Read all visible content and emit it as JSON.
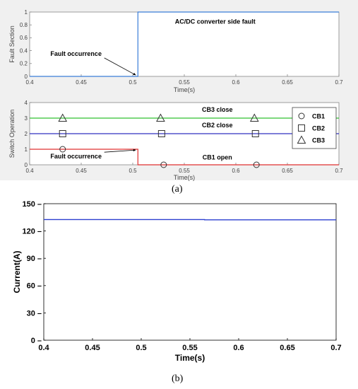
{
  "captions": {
    "a": "(a)",
    "b": "(b)"
  },
  "chart_data": [
    {
      "type": "line",
      "panel": "a-top",
      "xlabel": "Time(s)",
      "ylabel": "Fault Section",
      "xlim": [
        0.4,
        0.7
      ],
      "ylim": [
        0,
        1
      ],
      "xticks": [
        0.4,
        0.45,
        0.5,
        0.55,
        0.6,
        0.65,
        0.7
      ],
      "xtick_labels": [
        "0.4",
        "0.45",
        "0.5",
        "0.55",
        "0.6",
        "0.65",
        "0.7"
      ],
      "yticks": [
        0,
        0.2,
        0.4,
        0.6,
        0.8,
        1
      ],
      "ytick_labels": [
        "0",
        "0.2",
        "0.4",
        "0.6",
        "0.8",
        "1"
      ],
      "grid": false,
      "series": [
        {
          "color": "#3b7dd8",
          "x": [
            0.4,
            0.505,
            0.505,
            0.7
          ],
          "y": [
            0,
            0,
            1,
            1
          ]
        }
      ],
      "annotations": [
        {
          "text": "AC/DC converter side fault",
          "x": 0.58,
          "y": 0.82
        },
        {
          "text": "Fault occurrence",
          "x": 0.445,
          "y": 0.32,
          "arrow_to": [
            0.503,
            0.02
          ]
        }
      ]
    },
    {
      "type": "line",
      "panel": "a-bottom",
      "xlabel": "Time(s)",
      "ylabel": "Switch Operation",
      "xlim": [
        0.4,
        0.7
      ],
      "ylim": [
        0,
        4
      ],
      "xticks": [
        0.4,
        0.45,
        0.5,
        0.55,
        0.6,
        0.65,
        0.7
      ],
      "xtick_labels": [
        "0.4",
        "0.45",
        "0.5",
        "0.55",
        "0.6",
        "0.65",
        "0.7"
      ],
      "yticks": [
        0,
        1,
        2,
        3,
        4
      ],
      "ytick_labels": [
        "0",
        "1",
        "2",
        "3",
        "4"
      ],
      "grid": false,
      "legend_position": "right",
      "series": [
        {
          "name": "CB1",
          "color": "#e03030",
          "marker": "circle",
          "x": [
            0.4,
            0.505,
            0.505,
            0.7
          ],
          "y": [
            1,
            1,
            0,
            0
          ],
          "marker_points": [
            [
              0.432,
              1
            ],
            [
              0.53,
              0
            ],
            [
              0.62,
              0
            ]
          ]
        },
        {
          "name": "CB2",
          "color": "#3030c0",
          "marker": "square",
          "x": [
            0.4,
            0.7
          ],
          "y": [
            2,
            2
          ],
          "marker_points": [
            [
              0.432,
              2
            ],
            [
              0.528,
              2
            ],
            [
              0.619,
              2
            ]
          ]
        },
        {
          "name": "CB3",
          "color": "#30c030",
          "marker": "triangle",
          "x": [
            0.4,
            0.7
          ],
          "y": [
            3,
            3
          ],
          "marker_points": [
            [
              0.432,
              3
            ],
            [
              0.527,
              3
            ],
            [
              0.618,
              3
            ]
          ]
        }
      ],
      "annotations": [
        {
          "text": "CB3 close",
          "x": 0.582,
          "y": 3.4
        },
        {
          "text": "CB2 close",
          "x": 0.582,
          "y": 2.4
        },
        {
          "text": "CB1 open",
          "x": 0.582,
          "y": 0.35
        },
        {
          "text": "Fault occurrence",
          "x": 0.445,
          "y": 0.4,
          "arrow_to": [
            0.503,
            0.95
          ]
        }
      ]
    },
    {
      "type": "line",
      "panel": "b",
      "xlabel": "Time(s)",
      "ylabel": "Current(A)",
      "xlim": [
        0.4,
        0.7
      ],
      "ylim": [
        0,
        150
      ],
      "xticks": [
        0.4,
        0.45,
        0.5,
        0.55,
        0.6,
        0.65,
        0.7
      ],
      "xtick_labels": [
        "0.4",
        "0.45",
        "0.5",
        "0.55",
        "0.6",
        "0.65",
        "0.7"
      ],
      "yticks": [
        0,
        30,
        60,
        90,
        120,
        150
      ],
      "ytick_labels": [
        "0",
        "30",
        "60",
        "90",
        "120",
        "150"
      ],
      "grid": false,
      "series": [
        {
          "color": "#2b3fd0",
          "x": [
            0.4,
            0.565,
            0.565,
            0.7
          ],
          "y": [
            132.6,
            132.6,
            132.3,
            132.3
          ]
        }
      ]
    }
  ]
}
